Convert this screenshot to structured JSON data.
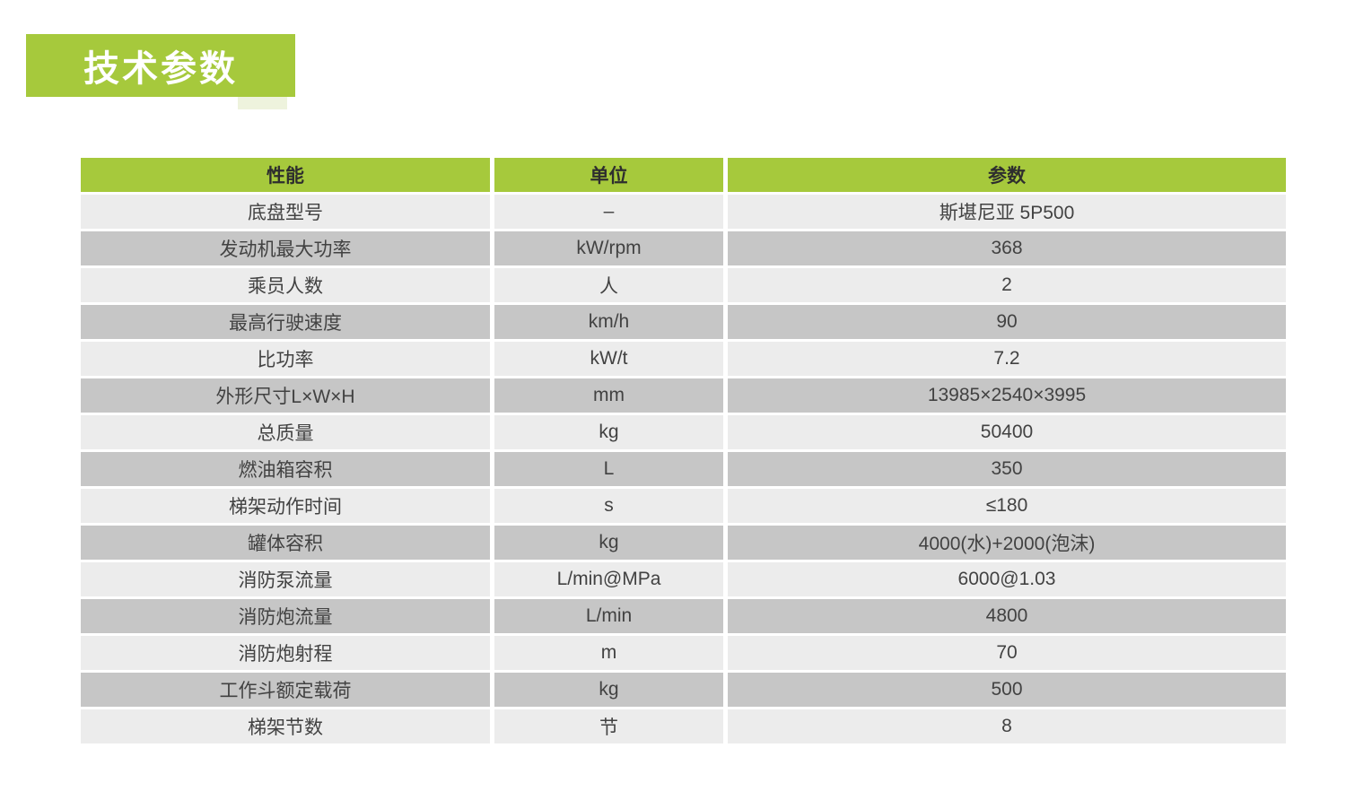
{
  "page": {
    "title": "技术参数"
  },
  "table": {
    "headers": [
      "性能",
      "单位",
      "参数"
    ],
    "rows": [
      [
        "底盘型号",
        "–",
        "斯堪尼亚 5P500"
      ],
      [
        "发动机最大功率",
        "kW/rpm",
        "368"
      ],
      [
        "乘员人数",
        "人",
        "2"
      ],
      [
        "最高行驶速度",
        "km/h",
        "90"
      ],
      [
        "比功率",
        "kW/t",
        "7.2"
      ],
      [
        "外形尺寸L×W×H",
        "mm",
        "13985×2540×3995"
      ],
      [
        "总质量",
        "kg",
        "50400"
      ],
      [
        "燃油箱容积",
        "L",
        "350"
      ],
      [
        "梯架动作时间",
        "s",
        "≤180"
      ],
      [
        "罐体容积",
        "kg",
        "4000(水)+2000(泡沫)"
      ],
      [
        "消防泵流量",
        "L/min@MPa",
        "6000@1.03"
      ],
      [
        "消防炮流量",
        "L/min",
        "4800"
      ],
      [
        "消防炮射程",
        "m",
        "70"
      ],
      [
        "工作斗额定载荷",
        "kg",
        "500"
      ],
      [
        "梯架节数",
        "节",
        "8"
      ]
    ]
  },
  "colors": {
    "accent_green": "#a6c93c",
    "row_light": "#ececec",
    "row_dark": "#c6c6c6",
    "title_text": "#ffffff",
    "body_text": "#424242"
  }
}
